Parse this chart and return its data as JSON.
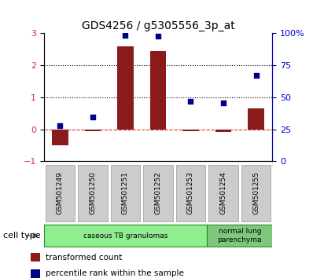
{
  "title": "GDS4256 / g5305556_3p_at",
  "samples": [
    "GSM501249",
    "GSM501250",
    "GSM501251",
    "GSM501252",
    "GSM501253",
    "GSM501254",
    "GSM501255"
  ],
  "transformed_count": [
    -0.5,
    -0.05,
    2.6,
    2.45,
    -0.05,
    -0.08,
    0.65
  ],
  "percentile_rank": [
    0.12,
    0.38,
    2.95,
    2.92,
    0.88,
    0.82,
    1.68
  ],
  "bar_color": "#8B1A1A",
  "dot_color": "#00008B",
  "ylim_left": [
    -1,
    3
  ],
  "ylim_right": [
    0,
    100
  ],
  "yticks_left": [
    -1,
    0,
    1,
    2,
    3
  ],
  "yticks_right": [
    0,
    25,
    50,
    75,
    100
  ],
  "ytick_labels_right": [
    "0",
    "25",
    "50",
    "75",
    "100%"
  ],
  "hlines": [
    0,
    1,
    2
  ],
  "hline_colors": [
    "#CC3333",
    "#000000",
    "#000000"
  ],
  "hline_styles": [
    "--",
    ":",
    ":"
  ],
  "group_spans": [
    {
      "start": 0,
      "end": 5,
      "label": "caseous TB granulomas",
      "color": "#90EE90",
      "edge": "#228B22"
    },
    {
      "start": 5,
      "end": 7,
      "label": "normal lung\nparenchyma",
      "color": "#7EC87E",
      "edge": "#228B22"
    }
  ],
  "cell_type_label": "cell type",
  "legend_items": [
    {
      "label": "transformed count",
      "color": "#8B1A1A"
    },
    {
      "label": "percentile rank within the sample",
      "color": "#00008B"
    }
  ],
  "bg_color": "#FFFFFF"
}
